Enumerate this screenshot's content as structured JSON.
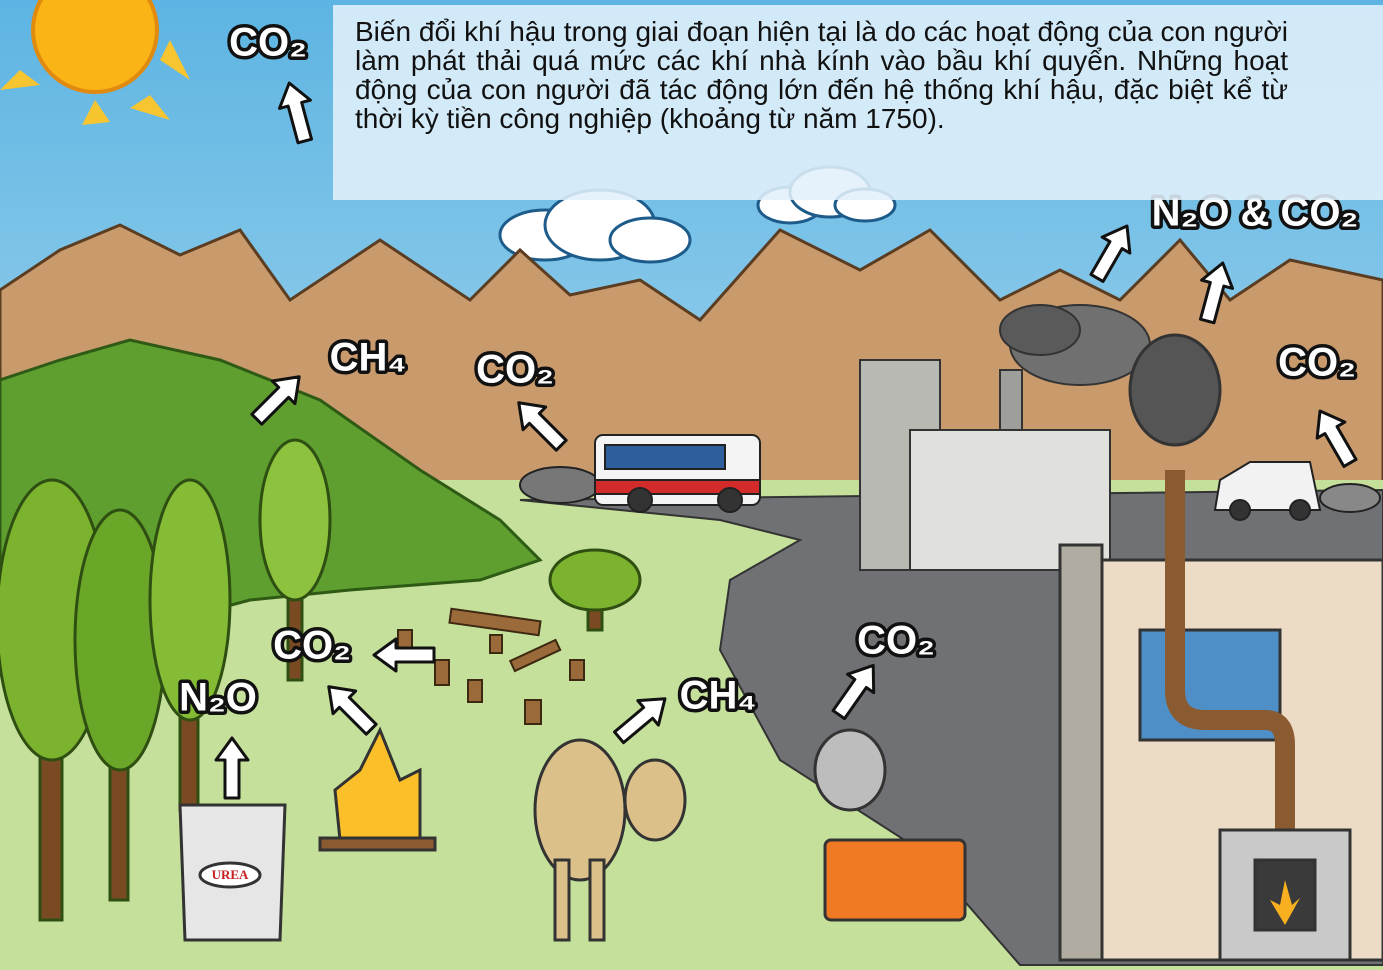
{
  "paragraph": "Biến đổi khí hậu trong giai đoạn hiện tại là do các hoạt động của con người làm phát thải quá mức các khí nhà kính vào bầu khí quyển. Những hoạt động của con người đã tác động lớn đến hệ thống khí hậu, đặc biệt kể từ thời kỳ tiền công nghiệp (khoảng từ năm 1750).",
  "labels": [
    "CO₂",
    "CH₄",
    "CO₂",
    "CO₂",
    "N₂O",
    "CH₄",
    "CO₂",
    "N₂O & CO₂",
    "CO₂"
  ],
  "bag_label": "UREA"
}
